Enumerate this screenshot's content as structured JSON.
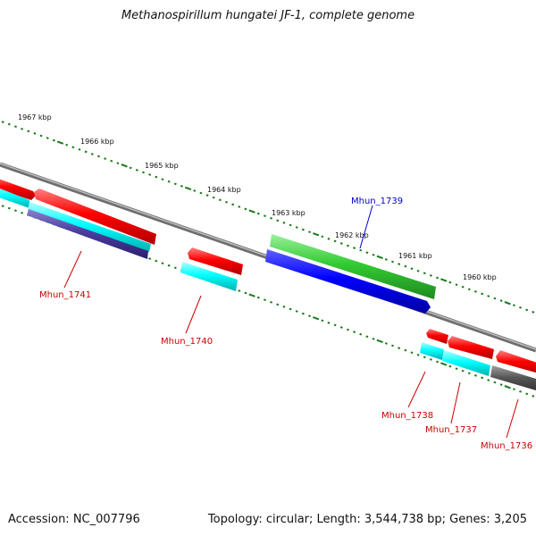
{
  "title": "Methanospirillum hungatei JF-1, complete genome",
  "footer": {
    "accession": "Accession: NC_007796",
    "summary": "Topology: circular; Length: 3,544,738 bp; Genes: 3,205"
  },
  "scale_labels": [
    "1967 kbp",
    "1966 kbp",
    "1965 kbp",
    "1964 kbp",
    "1963 kbp",
    "1962 kbp",
    "1961 kbp",
    "1960 kbp"
  ],
  "genes": [
    {
      "name": "Mhun_1741",
      "color": "#cc0000"
    },
    {
      "name": "Mhun_1740",
      "color": "#cc0000"
    },
    {
      "name": "Mhun_1739",
      "color": "#0000cc"
    },
    {
      "name": "Mhun_1738",
      "color": "#cc0000"
    },
    {
      "name": "Mhun_1737",
      "color": "#cc0000"
    },
    {
      "name": "Mhun_1736",
      "color": "#cc0000"
    }
  ],
  "colors": {
    "backbone": "#808080",
    "tick": "#1a7a1a",
    "cds_red": "#ff0000",
    "cds_cyan": "#00ffff",
    "cds_blue": "#0000ff",
    "cds_green": "#33cc33",
    "cds_gray": "#555555",
    "cds_purple": "#4b3d9e"
  }
}
